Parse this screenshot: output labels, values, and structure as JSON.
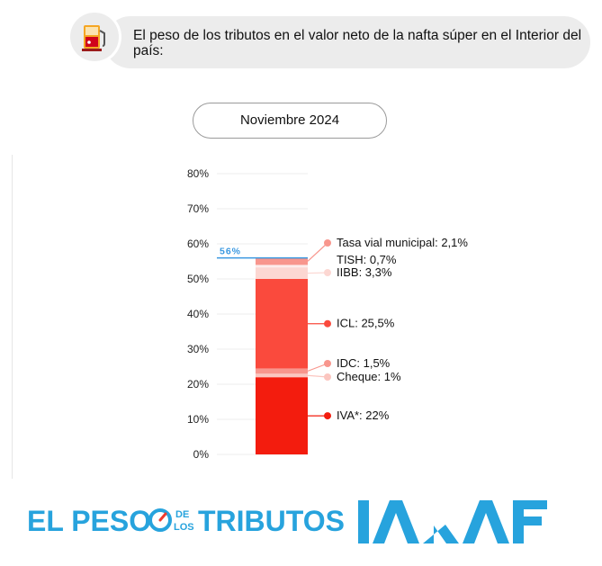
{
  "header": {
    "title": "El peso de los tributos en el valor neto de la nafta súper en el Interior del país:",
    "icon": "fuel-pump-icon"
  },
  "period_label": "Noviembre 2024",
  "chart_data": {
    "type": "bar",
    "stacked": true,
    "title": "",
    "xlabel": "",
    "ylabel": "",
    "ylim": [
      0,
      80
    ],
    "y_ticks": [
      "0%",
      "10%",
      "20%",
      "30%",
      "40%",
      "50%",
      "60%",
      "70%",
      "80%"
    ],
    "grid": true,
    "total_label": "56%",
    "total_value": 56,
    "series": [
      {
        "name": "IVA*",
        "value": 22,
        "label": "IVA*: 22%",
        "color": "#f31c0e"
      },
      {
        "name": "Cheque",
        "value": 1,
        "label": "Cheque: 1%",
        "color": "#fbc6c0"
      },
      {
        "name": "IDC",
        "value": 1.5,
        "label": "IDC: 1,5%",
        "color": "#f8968d"
      },
      {
        "name": "ICL",
        "value": 25.5,
        "label": "ICL: 25,5%",
        "color": "#fa4a3d"
      },
      {
        "name": "IIBB",
        "value": 3.3,
        "label": "IIBB: 3,3%",
        "color": "#fcd7d2"
      },
      {
        "name": "TISH",
        "value": 0.7,
        "label": "TISH: 0,7%",
        "color": "#fdeceb"
      },
      {
        "name": "Tasa vial municipal",
        "value": 2.1,
        "label": "Tasa vial municipal: 2,1%",
        "color": "#f8968d"
      }
    ],
    "total_marker_color": "#3a98e0"
  },
  "footer": {
    "brand_left": "EL PESO",
    "brand_de": "DE",
    "brand_los": "LOS",
    "brand_right": "TRIBUTOS",
    "logo": "IARAF",
    "brand_color": "#27a3dd"
  }
}
